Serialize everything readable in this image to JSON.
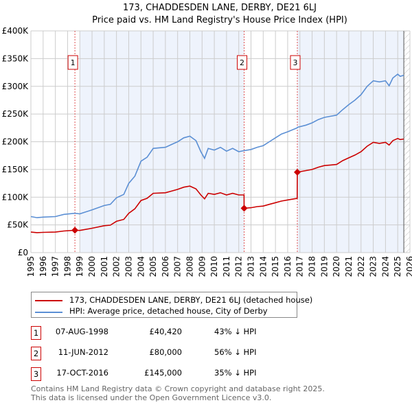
{
  "chart_data": {
    "type": "line",
    "title": "173, CHADDESDEN LANE, DERBY, DE21 6LJ",
    "subtitle": "Price paid vs. HM Land Registry's House Price Index (HPI)",
    "xlabel": "",
    "ylabel": "",
    "xlim": [
      1995,
      2026
    ],
    "ylim": [
      0,
      400000
    ],
    "yticks": [
      0,
      50000,
      100000,
      150000,
      200000,
      250000,
      300000,
      350000,
      400000
    ],
    "ytick_labels": [
      "£0",
      "£50K",
      "£100K",
      "£150K",
      "£200K",
      "£250K",
      "£300K",
      "£350K",
      "£400K"
    ],
    "xticks": [
      "1995",
      "1996",
      "1997",
      "1998",
      "1999",
      "2000",
      "2001",
      "2002",
      "2003",
      "2004",
      "2005",
      "2006",
      "2007",
      "2008",
      "2009",
      "2010",
      "2011",
      "2012",
      "2013",
      "2014",
      "2015",
      "2016",
      "2017",
      "2018",
      "2019",
      "2020",
      "2021",
      "2022",
      "2023",
      "2024",
      "2025",
      "2026"
    ],
    "grid": true,
    "x": [
      1995.0,
      1995.5,
      1996.0,
      1997.0,
      1997.7,
      1998.6,
      1999.0,
      2000.0,
      2001.0,
      2001.5,
      2002.0,
      2002.6,
      2003.0,
      2003.5,
      2004.0,
      2004.5,
      2005.0,
      2006.0,
      2006.5,
      2007.0,
      2007.5,
      2008.0,
      2008.5,
      2008.9,
      2009.2,
      2009.5,
      2010.0,
      2010.5,
      2011.0,
      2011.5,
      2012.0,
      2012.43,
      2012.44,
      2013.0,
      2013.5,
      2014.0,
      2014.5,
      2015.0,
      2015.5,
      2016.0,
      2016.78,
      2016.79,
      2017.5,
      2018.0,
      2018.5,
      2019.0,
      2019.5,
      2020.0,
      2020.5,
      2021.0,
      2021.5,
      2022.0,
      2022.5,
      2023.0,
      2023.5,
      2024.0,
      2024.3,
      2024.6,
      2025.0,
      2025.2,
      2025.5
    ],
    "series": [
      {
        "name": "173, CHADDESDEN LANE, DERBY, DE21 6LJ (detached house)",
        "color": "#cc0000",
        "values": [
          37000,
          36000,
          36500,
          37000,
          39000,
          40420,
          40000,
          44000,
          48500,
          49500,
          56500,
          60000,
          71000,
          79000,
          94000,
          98000,
          107000,
          108000,
          111000,
          114000,
          118000,
          120000,
          115000,
          104000,
          97000,
          107000,
          105000,
          108000,
          104000,
          107000,
          104000,
          104000,
          80000,
          81000,
          83000,
          84000,
          87000,
          90000,
          93000,
          95000,
          98000,
          145000,
          148000,
          150000,
          154000,
          157000,
          158000,
          159000,
          166000,
          171000,
          176000,
          182000,
          192000,
          199000,
          197000,
          199000,
          194000,
          202000,
          206000,
          204000,
          205000
        ]
      },
      {
        "name": "HPI: Average price, detached house, City of Derby",
        "color": "#5b8fd4",
        "values": [
          65000,
          63000,
          64000,
          65000,
          69000,
          71000,
          70000,
          77000,
          85000,
          87000,
          99000,
          105000,
          125000,
          138000,
          165000,
          172000,
          188000,
          190000,
          195000,
          200000,
          207000,
          210000,
          202000,
          182000,
          170000,
          188000,
          185000,
          190000,
          183000,
          188000,
          182000,
          184000,
          184000,
          186000,
          190000,
          193000,
          200000,
          207000,
          214000,
          218000,
          225000,
          226000,
          230000,
          234000,
          240000,
          244000,
          246000,
          248000,
          258000,
          267000,
          275000,
          285000,
          300000,
          310000,
          308000,
          310000,
          301000,
          315000,
          322000,
          318000,
          320000
        ]
      }
    ],
    "sales": [
      {
        "label": "1",
        "x": 1998.6,
        "price": 40420,
        "date": "07-AUG-1998",
        "price_text": "£40,420",
        "hpi_text": "43% ↓ HPI"
      },
      {
        "label": "2",
        "x": 2012.44,
        "price": 80000,
        "date": "11-JUN-2012",
        "price_text": "£80,000",
        "hpi_text": "56% ↓ HPI"
      },
      {
        "label": "3",
        "x": 2016.79,
        "price": 145000,
        "date": "17-OCT-2016",
        "price_text": "£145,000",
        "hpi_text": "35% ↓ HPI"
      }
    ],
    "legend": {
      "placement": "below"
    }
  },
  "footer": {
    "line1": "Contains HM Land Registry data © Crown copyright and database right 2025.",
    "line2": "This data is licensed under the Open Government Licence v3.0."
  }
}
